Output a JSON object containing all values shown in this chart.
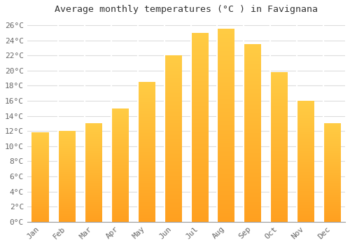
{
  "title": "Average monthly temperatures (°C ) in Favignana",
  "months": [
    "Jan",
    "Feb",
    "Mar",
    "Apr",
    "May",
    "Jun",
    "Jul",
    "Aug",
    "Sep",
    "Oct",
    "Nov",
    "Dec"
  ],
  "values": [
    11.8,
    12.0,
    13.0,
    15.0,
    18.5,
    22.0,
    25.0,
    25.5,
    23.5,
    19.8,
    16.0,
    13.0
  ],
  "bar_color_top": "#FFCC44",
  "bar_color_bottom": "#FFA020",
  "background_color": "#FFFFFF",
  "grid_color": "#DDDDDD",
  "ylim": [
    0,
    27
  ],
  "ytick_step": 2,
  "title_fontsize": 9.5,
  "tick_fontsize": 8,
  "font_family": "monospace",
  "bar_width": 0.65
}
